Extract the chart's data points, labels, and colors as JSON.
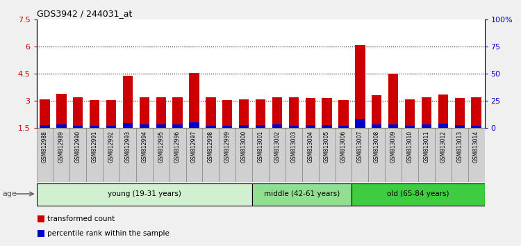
{
  "title": "GDS3942 / 244031_at",
  "samples": [
    "GSM812988",
    "GSM812989",
    "GSM812990",
    "GSM812991",
    "GSM812992",
    "GSM812993",
    "GSM812994",
    "GSM812995",
    "GSM812996",
    "GSM812997",
    "GSM812998",
    "GSM812999",
    "GSM813000",
    "GSM813001",
    "GSM813002",
    "GSM813003",
    "GSM813004",
    "GSM813005",
    "GSM813006",
    "GSM813007",
    "GSM813008",
    "GSM813009",
    "GSM813010",
    "GSM813011",
    "GSM813012",
    "GSM813013",
    "GSM813014"
  ],
  "transformed_count": [
    3.1,
    3.4,
    3.2,
    3.05,
    3.05,
    4.4,
    3.2,
    3.2,
    3.2,
    4.55,
    3.2,
    3.05,
    3.1,
    3.1,
    3.2,
    3.2,
    3.15,
    3.15,
    3.05,
    6.1,
    3.3,
    4.5,
    3.1,
    3.2,
    3.35,
    3.15,
    3.2
  ],
  "percentile_rank": [
    0.15,
    0.2,
    0.1,
    0.1,
    0.1,
    0.28,
    0.18,
    0.2,
    0.18,
    0.32,
    0.1,
    0.1,
    0.15,
    0.15,
    0.18,
    0.1,
    0.15,
    0.15,
    0.1,
    0.5,
    0.18,
    0.18,
    0.1,
    0.18,
    0.25,
    0.15,
    0.1
  ],
  "ylim_left": [
    1.5,
    7.5
  ],
  "ylim_right": [
    0,
    100
  ],
  "yticks_left": [
    1.5,
    3.0,
    4.5,
    6.0,
    7.5
  ],
  "yticks_right": [
    0,
    25,
    50,
    75,
    100
  ],
  "ytick_labels_left": [
    "1.5",
    "3",
    "4.5",
    "6",
    "7.5"
  ],
  "ytick_labels_right": [
    "0",
    "25",
    "50",
    "75",
    "100%"
  ],
  "bar_color": "#cc0000",
  "blue_color": "#0000cc",
  "bg_color": "#d0d0d0",
  "plot_bg": "#ffffff",
  "fig_bg": "#f0f0f0",
  "age_groups": [
    {
      "label": "young (19-31 years)",
      "start": 0,
      "end": 13,
      "color": "#d0f0d0"
    },
    {
      "label": "middle (42-61 years)",
      "start": 13,
      "end": 19,
      "color": "#90e090"
    },
    {
      "label": "old (65-84 years)",
      "start": 19,
      "end": 27,
      "color": "#40cc40"
    }
  ],
  "legend_items": [
    {
      "label": "transformed count",
      "color": "#cc0000"
    },
    {
      "label": "percentile rank within the sample",
      "color": "#0000cc"
    }
  ],
  "bar_width": 0.6,
  "base_value": 1.5,
  "grid_yticks": [
    3.0,
    4.5,
    6.0
  ]
}
